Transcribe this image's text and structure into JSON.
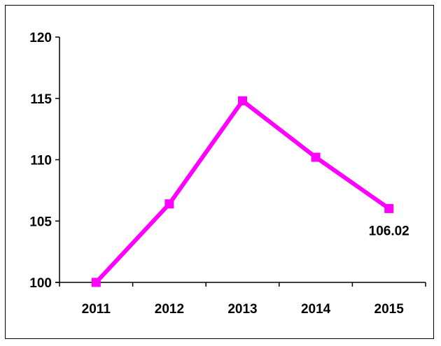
{
  "chart_data": {
    "type": "line",
    "title": "",
    "xlabel": "",
    "ylabel": "",
    "categories": [
      "2011",
      "2012",
      "2013",
      "2014",
      "2015"
    ],
    "series": [
      {
        "values": [
          100,
          106.4,
          114.8,
          110.2,
          106.02
        ],
        "color": "#ff00ff",
        "marker": "square"
      }
    ],
    "ylim": [
      100,
      120
    ],
    "yticks": [
      "100",
      "105",
      "110",
      "115",
      "120"
    ],
    "data_labels": [
      {
        "index": 4,
        "text": "106.02"
      }
    ],
    "grid": false,
    "legend": "none"
  }
}
